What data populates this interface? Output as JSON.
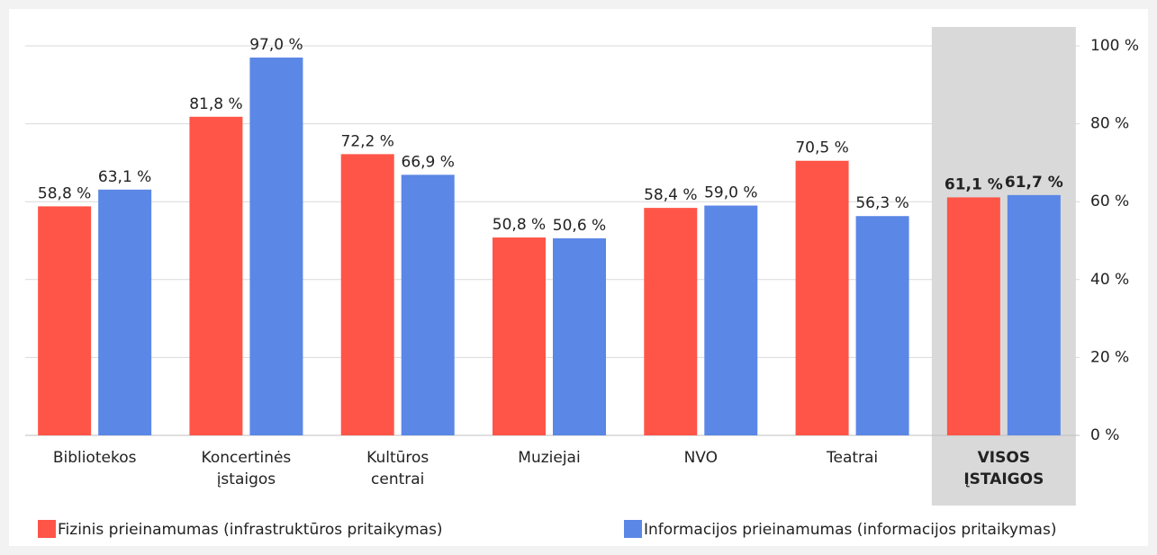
{
  "chart_data": {
    "type": "bar",
    "categories": [
      "Bibliotekos",
      "Koncertinės įstaigos",
      "Kultūros centrai",
      "Muziejai",
      "NVO",
      "Teatrai",
      "VISOS ĮSTAIGOS"
    ],
    "series": [
      {
        "name": "Fizinis prieinamumas (infrastruktūros pritaikymas)",
        "color": "#ff5548",
        "values": [
          58.8,
          81.8,
          72.2,
          50.8,
          58.4,
          70.5,
          61.1
        ],
        "value_labels": [
          "58,8 %",
          "81,8 %",
          "72,2 %",
          "50,8 %",
          "58,4 %",
          "70,5 %",
          "61,1 %"
        ]
      },
      {
        "name": "Informacijos prieinamumas (informacijos pritaikymas)",
        "color": "#5b87e6",
        "values": [
          63.1,
          97.0,
          66.9,
          50.6,
          59.0,
          56.3,
          61.7
        ],
        "value_labels": [
          "63,1 %",
          "97,0 %",
          "66,9 %",
          "50,6 %",
          "59,0 %",
          "56,3 %",
          "61,7 %"
        ]
      }
    ],
    "ylim": [
      0,
      100
    ],
    "yticks": [
      {
        "value": 0,
        "label": "0 %"
      },
      {
        "value": 20,
        "label": "20 %"
      },
      {
        "value": 40,
        "label": "40 %"
      },
      {
        "value": 60,
        "label": "60 %"
      },
      {
        "value": 80,
        "label": "80 %"
      },
      {
        "value": 100,
        "label": "100 %"
      }
    ],
    "grid": true,
    "y_axis_side": "right",
    "highlight_index": 6,
    "legend": "bottom"
  }
}
